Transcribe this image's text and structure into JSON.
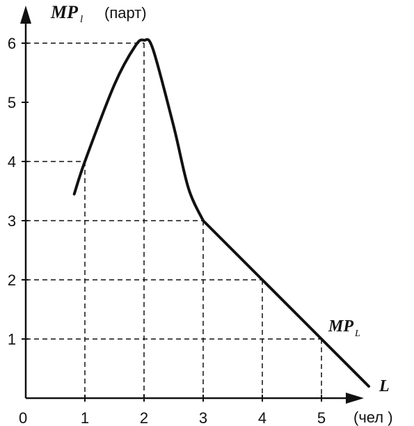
{
  "chart_data": {
    "type": "line",
    "y_axis": {
      "symbol": "MP",
      "subscript": "l",
      "unit": "(парт)"
    },
    "x_axis": {
      "symbol": "L",
      "unit": "(чел )"
    },
    "origin_label": "0",
    "x_ticks": [
      "1",
      "2",
      "3",
      "4",
      "5"
    ],
    "y_ticks": [
      "1",
      "2",
      "3",
      "4",
      "5",
      "6"
    ],
    "xlim": [
      0,
      5.6
    ],
    "ylim": [
      0,
      6.4
    ],
    "grid": "dashed guide lines at marked points",
    "series": [
      {
        "name": "MP",
        "name_subscript": "L",
        "points": [
          {
            "x": 0.82,
            "y": 3.45
          },
          {
            "x": 1.0,
            "y": 4.0
          },
          {
            "x": 1.5,
            "y": 5.3
          },
          {
            "x": 1.85,
            "y": 5.95
          },
          {
            "x": 2.0,
            "y": 6.05
          },
          {
            "x": 2.15,
            "y": 5.9
          },
          {
            "x": 2.5,
            "y": 4.6
          },
          {
            "x": 2.75,
            "y": 3.55
          },
          {
            "x": 3.0,
            "y": 3.0
          },
          {
            "x": 4.0,
            "y": 2.0
          },
          {
            "x": 5.0,
            "y": 1.0
          },
          {
            "x": 5.8,
            "y": 0.2
          }
        ]
      }
    ],
    "guides": [
      {
        "x": 1,
        "y": 4
      },
      {
        "x": 2,
        "y": 6
      },
      {
        "x": 3,
        "y": 3
      },
      {
        "x": 4,
        "y": 2
      },
      {
        "x": 5,
        "y": 1
      }
    ]
  }
}
